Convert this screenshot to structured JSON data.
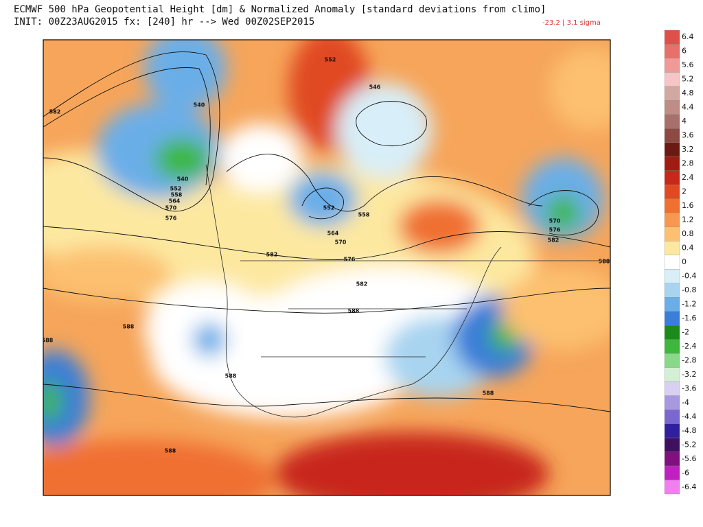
{
  "header": {
    "title": "ECMWF 500 hPa Geopotential Height [dm] & Normalized Anomaly [standard deviations from climo]",
    "subtitle": "INIT: 00Z23AUG2015 fx: [240] hr --> Wed 00Z02SEP2015",
    "annotation": "-23.2 | 3.1 sigma"
  },
  "colorbar": {
    "values": [
      6.4,
      6,
      5.6,
      5.2,
      4.8,
      4.4,
      4,
      3.6,
      3.2,
      2.8,
      2.4,
      2,
      1.6,
      1.2,
      0.8,
      0.4,
      0,
      -0.4,
      -0.8,
      -1.2,
      -1.6,
      -2,
      -2.4,
      -2.8,
      -3.2,
      -3.6,
      -4,
      -4.4,
      -4.8,
      -5.2,
      -5.6,
      -6,
      -6.4
    ],
    "colors": [
      "#e0504a",
      "#e8706a",
      "#f09a98",
      "#f6c6c6",
      "#d2a8a2",
      "#bf8c86",
      "#a8706a",
      "#8c4a42",
      "#6a1a12",
      "#a01c12",
      "#c8281a",
      "#e04a20",
      "#f07030",
      "#f89850",
      "#fcc070",
      "#fde8a0",
      "#ffffff",
      "#d8eef8",
      "#a8d4f0",
      "#6aaee8",
      "#3a7ed8",
      "#1a8a1a",
      "#3cb83c",
      "#8ad88a",
      "#d4f0d4",
      "#d8d0f0",
      "#a898e0",
      "#7a68d0",
      "#3020a0",
      "#401060",
      "#801080",
      "#c020c0",
      "#f080f0"
    ]
  },
  "map": {
    "contour_labels": [
      "552",
      "546",
      "540",
      "582",
      "540",
      "552",
      "558",
      "564",
      "570",
      "576",
      "552",
      "558",
      "564",
      "570",
      "582",
      "576",
      "582",
      "588",
      "588",
      "588",
      "588",
      "588",
      "588",
      "570",
      "576",
      "582",
      "588"
    ]
  }
}
